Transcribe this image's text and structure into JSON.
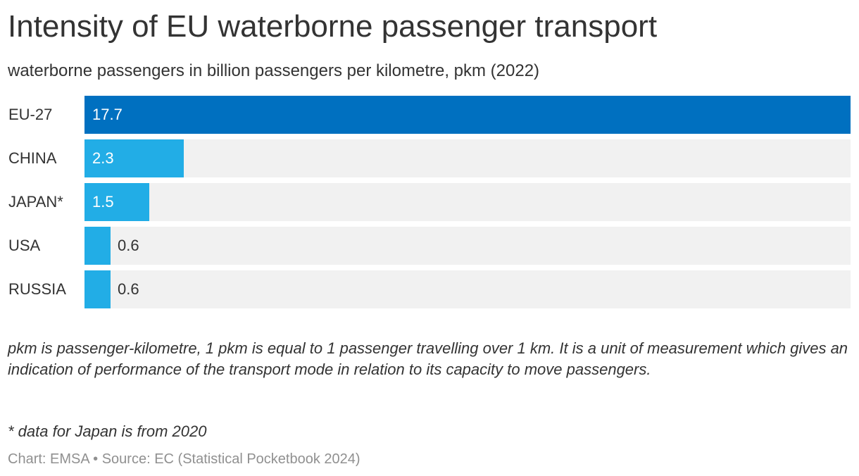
{
  "title": "Intensity of EU waterborne passenger transport",
  "subtitle": "waterborne passengers in billion passengers per kilometre, pkm (2022)",
  "chart_data": {
    "type": "bar",
    "orientation": "horizontal",
    "categories": [
      "EU-27",
      "CHINA",
      "JAPAN*",
      "USA",
      "RUSSIA"
    ],
    "values": [
      17.7,
      2.3,
      1.5,
      0.6,
      0.6
    ],
    "value_labels": [
      "17.7",
      "2.3",
      "1.5",
      "0.6",
      "0.6"
    ],
    "xlim": [
      0,
      17.7
    ],
    "grid": false,
    "colors": {
      "highlight": "#0070c0",
      "bar": "#22ade6",
      "track": "#f1f1f1",
      "label_inside": "#ffffff",
      "label_outside": "#333333"
    }
  },
  "note": "pkm is passenger-kilometre, 1 pkm is equal to 1 passenger travelling over 1 km. It is a unit of measurement which gives an indication of performance of the transport mode in relation to its capacity to move passengers.",
  "footnote": "* data for Japan is from 2020",
  "footer": "Chart: EMSA • Source: EC (Statistical Pocketbook 2024)"
}
